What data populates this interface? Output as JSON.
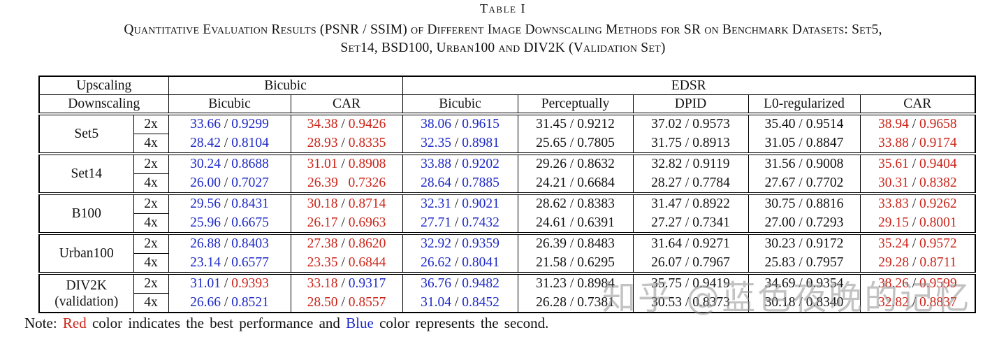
{
  "title": "Table I",
  "caption_line1": "Quantitative Evaluation Results (PSNR / SSIM) of Different Image Downscaling Methods for SR on Benchmark Datasets: Set5,",
  "caption_line2": "Set14, BSD100, Urban100 and DIV2K (Validation Set)",
  "colors": {
    "best_red": "#cc2418",
    "second_blue": "#1e2ac8",
    "text": "#111111"
  },
  "header": {
    "upscaling": "Upscaling",
    "downscaling": "Downscaling",
    "group_labels": [
      "Bicubic",
      "EDSR"
    ],
    "methods": [
      "Bicubic",
      "CAR",
      "Bicubic",
      "Perceptually",
      "DPID",
      "L0-regularized",
      "CAR"
    ]
  },
  "datasets": [
    {
      "name_lines": [
        "Set5"
      ],
      "rows": [
        {
          "scale": "2x",
          "cells": [
            {
              "p": "33.66",
              "s": "0.9299",
              "pc": "second",
              "sc": "second"
            },
            {
              "p": "34.38",
              "s": "0.9426",
              "pc": "best",
              "sc": "best"
            },
            {
              "p": "38.06",
              "s": "0.9615",
              "pc": "second",
              "sc": "second"
            },
            {
              "p": "31.45",
              "s": "0.9212",
              "pc": "normal",
              "sc": "normal"
            },
            {
              "p": "37.02",
              "s": "0.9573",
              "pc": "normal",
              "sc": "normal"
            },
            {
              "p": "35.40",
              "s": "0.9514",
              "pc": "normal",
              "sc": "normal"
            },
            {
              "p": "38.94",
              "s": "0.9658",
              "pc": "best",
              "sc": "best"
            }
          ]
        },
        {
          "scale": "4x",
          "cells": [
            {
              "p": "28.42",
              "s": "0.8104",
              "pc": "second",
              "sc": "second"
            },
            {
              "p": "28.93",
              "s": "0.8335",
              "pc": "best",
              "sc": "best"
            },
            {
              "p": "32.35",
              "s": "0.8981",
              "pc": "second",
              "sc": "second"
            },
            {
              "p": "25.65",
              "s": "0.7805",
              "pc": "normal",
              "sc": "normal"
            },
            {
              "p": "31.75",
              "s": "0.8913",
              "pc": "normal",
              "sc": "normal"
            },
            {
              "p": "31.05",
              "s": "0.8847",
              "pc": "normal",
              "sc": "normal"
            },
            {
              "p": "33.88",
              "s": "0.9174",
              "pc": "best",
              "sc": "best"
            }
          ]
        }
      ]
    },
    {
      "name_lines": [
        "Set14"
      ],
      "rows": [
        {
          "scale": "2x",
          "cells": [
            {
              "p": "30.24",
              "s": "0.8688",
              "pc": "second",
              "sc": "second"
            },
            {
              "p": "31.01",
              "s": "0.8908",
              "pc": "best",
              "sc": "best"
            },
            {
              "p": "33.88",
              "s": "0.9202",
              "pc": "second",
              "sc": "second"
            },
            {
              "p": "29.26",
              "s": "0.8632",
              "pc": "normal",
              "sc": "normal"
            },
            {
              "p": "32.82",
              "s": "0.9119",
              "pc": "normal",
              "sc": "normal"
            },
            {
              "p": "31.56",
              "s": "0.9008",
              "pc": "normal",
              "sc": "normal"
            },
            {
              "p": "35.61",
              "s": "0.9404",
              "pc": "best",
              "sc": "best"
            }
          ]
        },
        {
          "scale": "4x",
          "cells": [
            {
              "p": "26.00",
              "s": "0.7027",
              "pc": "second",
              "sc": "second"
            },
            {
              "p": "26.39",
              "s": "0.7326",
              "pc": "best",
              "sc": "best",
              "sep": "   "
            },
            {
              "p": "28.64",
              "s": "0.7885",
              "pc": "second",
              "sc": "second"
            },
            {
              "p": "24.21",
              "s": "0.6684",
              "pc": "normal",
              "sc": "normal"
            },
            {
              "p": "28.27",
              "s": "0.7784",
              "pc": "normal",
              "sc": "normal"
            },
            {
              "p": "27.67",
              "s": "0.7702",
              "pc": "normal",
              "sc": "normal"
            },
            {
              "p": "30.31",
              "s": "0.8382",
              "pc": "best",
              "sc": "best"
            }
          ]
        }
      ]
    },
    {
      "name_lines": [
        "B100"
      ],
      "rows": [
        {
          "scale": "2x",
          "cells": [
            {
              "p": "29.56",
              "s": "0.8431",
              "pc": "second",
              "sc": "second"
            },
            {
              "p": "30.18",
              "s": "0.8714",
              "pc": "best",
              "sc": "best"
            },
            {
              "p": "32.31",
              "s": "0.9021",
              "pc": "second",
              "sc": "second"
            },
            {
              "p": "28.62",
              "s": "0.8383",
              "pc": "normal",
              "sc": "normal"
            },
            {
              "p": "31.47",
              "s": "0.8922",
              "pc": "normal",
              "sc": "normal"
            },
            {
              "p": "30.75",
              "s": "0.8816",
              "pc": "normal",
              "sc": "normal"
            },
            {
              "p": "33.83",
              "s": "0.9262",
              "pc": "best",
              "sc": "best"
            }
          ]
        },
        {
          "scale": "4x",
          "cells": [
            {
              "p": "25.96",
              "s": "0.6675",
              "pc": "second",
              "sc": "second"
            },
            {
              "p": "26.17",
              "s": "0.6963",
              "pc": "best",
              "sc": "best"
            },
            {
              "p": "27.71",
              "s": "0.7432",
              "pc": "second",
              "sc": "second"
            },
            {
              "p": "24.61",
              "s": "0.6391",
              "pc": "normal",
              "sc": "normal"
            },
            {
              "p": "27.27",
              "s": "0.7341",
              "pc": "normal",
              "sc": "normal"
            },
            {
              "p": "27.00",
              "s": "0.7293",
              "pc": "normal",
              "sc": "normal"
            },
            {
              "p": "29.15",
              "s": "0.8001",
              "pc": "best",
              "sc": "best"
            }
          ]
        }
      ]
    },
    {
      "name_lines": [
        "Urban100"
      ],
      "rows": [
        {
          "scale": "2x",
          "cells": [
            {
              "p": "26.88",
              "s": "0.8403",
              "pc": "second",
              "sc": "second"
            },
            {
              "p": "27.38",
              "s": "0.8620",
              "pc": "best",
              "sc": "best"
            },
            {
              "p": "32.92",
              "s": "0.9359",
              "pc": "second",
              "sc": "second"
            },
            {
              "p": "26.39",
              "s": "0.8483",
              "pc": "normal",
              "sc": "normal"
            },
            {
              "p": "31.64",
              "s": "0.9271",
              "pc": "normal",
              "sc": "normal"
            },
            {
              "p": "30.23",
              "s": "0.9172",
              "pc": "normal",
              "sc": "normal"
            },
            {
              "p": "35.24",
              "s": "0.9572",
              "pc": "best",
              "sc": "best"
            }
          ]
        },
        {
          "scale": "4x",
          "cells": [
            {
              "p": "23.14",
              "s": "0.6577",
              "pc": "second",
              "sc": "second"
            },
            {
              "p": "23.35",
              "s": "0.6844",
              "pc": "best",
              "sc": "best"
            },
            {
              "p": "26.62",
              "s": "0.8041",
              "pc": "second",
              "sc": "second"
            },
            {
              "p": "21.58",
              "s": "0.6295",
              "pc": "normal",
              "sc": "normal"
            },
            {
              "p": "26.07",
              "s": "0.7967",
              "pc": "normal",
              "sc": "normal"
            },
            {
              "p": "25.83",
              "s": "0.7957",
              "pc": "normal",
              "sc": "normal"
            },
            {
              "p": "29.28",
              "s": "0.8711",
              "pc": "best",
              "sc": "best"
            }
          ]
        }
      ]
    },
    {
      "name_lines": [
        "DIV2K",
        "(validation)"
      ],
      "rows": [
        {
          "scale": "2x",
          "cells": [
            {
              "p": "31.01",
              "s": "0.9393",
              "pc": "second",
              "sc": "best"
            },
            {
              "p": "33.18",
              "s": "0.9317",
              "pc": "best",
              "sc": "second"
            },
            {
              "p": "36.76",
              "s": "0.9482",
              "pc": "second",
              "sc": "second"
            },
            {
              "p": "31.23",
              "s": "0.8984",
              "pc": "normal",
              "sc": "normal"
            },
            {
              "p": "35.75",
              "s": "0.9419",
              "pc": "normal",
              "sc": "normal"
            },
            {
              "p": "34.69",
              "s": "0.9354",
              "pc": "normal",
              "sc": "normal"
            },
            {
              "p": "38.26",
              "s": "0.9599",
              "pc": "best",
              "sc": "best"
            }
          ]
        },
        {
          "scale": "4x",
          "cells": [
            {
              "p": "26.66",
              "s": "0.8521",
              "pc": "second",
              "sc": "second"
            },
            {
              "p": "28.50",
              "s": "0.8557",
              "pc": "best",
              "sc": "best"
            },
            {
              "p": "31.04",
              "s": "0.8452",
              "pc": "second",
              "sc": "second"
            },
            {
              "p": "26.28",
              "s": "0.7381",
              "pc": "normal",
              "sc": "normal"
            },
            {
              "p": "30.53",
              "s": "0.8373",
              "pc": "normal",
              "sc": "normal"
            },
            {
              "p": "30.18",
              "s": "0.8340",
              "pc": "normal",
              "sc": "normal"
            },
            {
              "p": "32.82",
              "s": "0.8837",
              "pc": "best",
              "sc": "best"
            }
          ]
        }
      ]
    }
  ],
  "note": {
    "prefix": "Note: ",
    "red_word": "Red",
    "mid": " color indicates the best performance and ",
    "blue_word": "Blue",
    "suffix": " color represents the second."
  },
  "watermark": "知乎 @蓝色夜晚的记忆"
}
